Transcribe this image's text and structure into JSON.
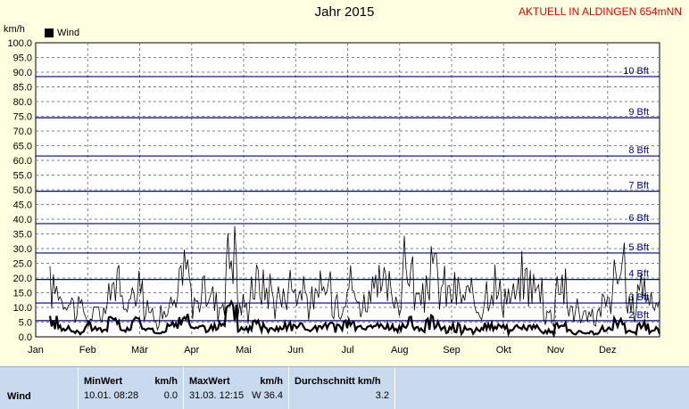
{
  "header": {
    "title": "Jahr 2015",
    "aktuell": "AKTUELL IN ALDINGEN 654mNN",
    "unit": "km/h"
  },
  "legend": {
    "label": "Wind",
    "color": "#000000"
  },
  "chart_data": {
    "type": "line",
    "ylim": [
      0,
      100
    ],
    "yticks": [
      "0.0",
      "5.0",
      "10.0",
      "15.0",
      "20.0",
      "25.0",
      "30.0",
      "35.0",
      "40.0",
      "45.0",
      "50.0",
      "55.0",
      "60.0",
      "65.0",
      "70.0",
      "75.0",
      "80.0",
      "85.0",
      "90.0",
      "95.0",
      "100.0"
    ],
    "months": [
      "Jan",
      "Feb",
      "Mär",
      "Apr",
      "Mai",
      "Jun",
      "Jul",
      "Aug",
      "Sep",
      "Okt",
      "Nov",
      "Dez"
    ],
    "beaufort": [
      {
        "label": "2 Bft",
        "value": 5.5
      },
      {
        "label": "3 Bft",
        "value": 11.5
      },
      {
        "label": "4 Bft",
        "value": 19.5
      },
      {
        "label": "5 Bft",
        "value": 28.5
      },
      {
        "label": "6 Bft",
        "value": 38.5
      },
      {
        "label": "7 Bft",
        "value": 49.5
      },
      {
        "label": "8 Bft",
        "value": 61.5
      },
      {
        "label": "9 Bft",
        "value": 74.5
      },
      {
        "label": "10 Bft",
        "value": 88.5
      }
    ],
    "series": [
      {
        "name": "Wind",
        "color": "#000000",
        "gust_weeks": [
          20,
          16,
          12,
          8,
          10,
          22,
          14,
          24,
          10,
          9,
          12,
          26,
          15,
          18,
          14,
          34,
          12,
          22,
          20,
          16,
          22,
          18,
          14,
          20,
          16,
          22,
          14,
          18,
          20,
          16,
          28,
          14,
          26,
          20,
          18,
          16,
          14,
          22,
          18,
          16,
          24,
          20,
          10,
          22,
          12,
          8,
          9,
          14,
          26,
          12,
          22,
          14,
          10,
          8,
          13,
          15
        ],
        "mean_weeks": [
          6,
          3,
          2,
          4,
          3,
          6,
          3,
          6,
          3,
          2,
          4,
          7,
          4,
          4,
          4,
          10,
          3,
          5,
          4,
          4,
          5,
          4,
          3,
          4,
          4,
          5,
          3,
          4,
          4,
          3,
          7,
          3,
          6,
          4,
          4,
          3,
          3,
          5,
          4,
          3,
          4,
          4,
          2,
          4,
          2,
          2,
          2,
          3,
          6,
          2,
          4,
          3,
          2,
          2,
          2,
          3
        ]
      }
    ]
  },
  "stats": {
    "row_label": "Wind",
    "min_header": "MinWert",
    "min_unit": "km/h",
    "min_time": "10.01.  08:28",
    "min_value": "0.0",
    "max_header": "MaxWert",
    "max_unit": "km/h",
    "max_time": "31.03.  12:15",
    "max_value": "W 36.4",
    "avg_header": "Durchschnitt km/h",
    "avg_value": "3.2"
  }
}
